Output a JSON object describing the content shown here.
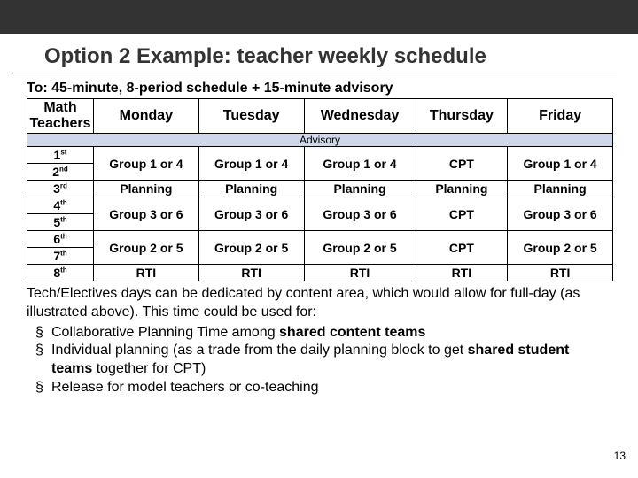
{
  "colors": {
    "topbar": "#333333",
    "border": "#000000",
    "advisory_bg": "#d0d7e8",
    "text": "#000000",
    "background": "#ffffff"
  },
  "title": "Option 2 Example: teacher weekly schedule",
  "subtitle": "To: 45-minute, 8-period schedule + 15-minute advisory",
  "header": {
    "corner": "Math Teachers",
    "days": [
      "Monday",
      "Tuesday",
      "Wednesday",
      "Thursday",
      "Friday"
    ]
  },
  "advisory_label": "Advisory",
  "periods": [
    {
      "num": "1",
      "ord": "st"
    },
    {
      "num": "2",
      "ord": "nd"
    },
    {
      "num": "3",
      "ord": "rd"
    },
    {
      "num": "4",
      "ord": "th"
    },
    {
      "num": "5",
      "ord": "th"
    },
    {
      "num": "6",
      "ord": "th"
    },
    {
      "num": "7",
      "ord": "th"
    },
    {
      "num": "8",
      "ord": "th"
    }
  ],
  "cells": {
    "g14": "Group 1 or 4",
    "g36": "Group 3 or 6",
    "g25": "Group 2 or 5",
    "cpt": "CPT",
    "plan": "Planning",
    "rti": "RTI"
  },
  "notes": {
    "intro": "Tech/Electives days can be dedicated by content area, which would allow for full-day (as illustrated above). This time could be used for:",
    "b1a": "Collaborative Planning Time among ",
    "b1b": "shared content teams",
    "b2a": "Individual planning (as a trade from the daily planning block to get ",
    "b2b": "shared student teams",
    "b2c": " together for CPT)",
    "b3": "Release for model teachers or co-teaching"
  },
  "pagenum": "13"
}
